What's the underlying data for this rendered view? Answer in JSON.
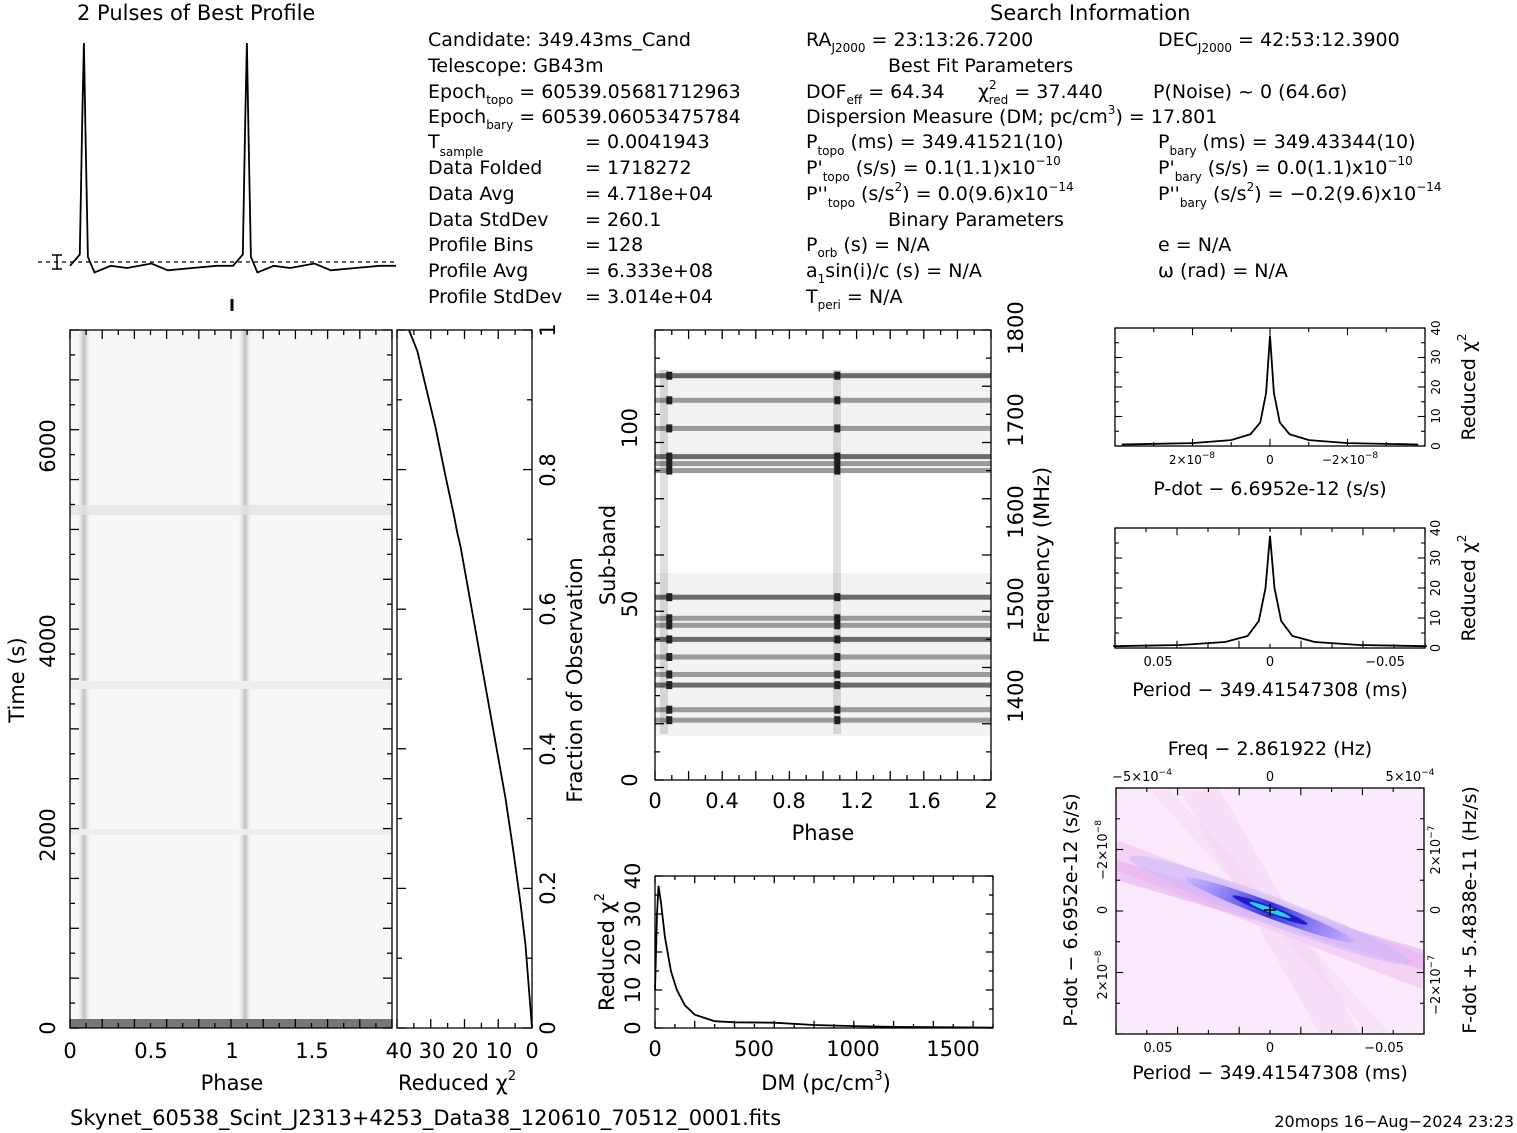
{
  "header": {
    "profile_title": "2 Pulses of Best Profile",
    "search_title": "Search Information",
    "best_fit_title": "Best Fit Parameters",
    "binary_title": "Binary Parameters"
  },
  "info": {
    "candidate": "Candidate:  349.43ms_Cand",
    "telescope": "Telescope:  GB43m",
    "epoch_topo_label": "Epoch",
    "epoch_topo_sub": "topo",
    "epoch_topo_value": " = 60539.05681712963",
    "epoch_bary_label": "Epoch",
    "epoch_bary_sub": "bary",
    "epoch_bary_value": " = 60539.06053475784",
    "t_sample_label": "T",
    "t_sample_sub": "sample",
    "t_sample_value": "=   0.0041943",
    "data_folded_label": "Data Folded",
    "data_folded_value": "=   1718272",
    "data_avg_label": "Data Avg",
    "data_avg_value": "=   4.718e+04",
    "data_stddev_label": "Data StdDev",
    "data_stddev_value": "=   260.1",
    "profile_bins_label": "Profile Bins",
    "profile_bins_value": "=   128",
    "profile_avg_label": "Profile Avg",
    "profile_avg_value": "=   6.333e+08",
    "profile_stddev_label": "Profile StdDev",
    "profile_stddev_value": "=   3.014e+04"
  },
  "search": {
    "ra_label": "RA",
    "ra_sub": "J2000",
    "ra_value": " = 23:13:26.7200",
    "dec_label": "DEC",
    "dec_sub": "J2000",
    "dec_value": " = 42:53:12.3900",
    "dof_label": "DOF",
    "dof_sub": "eff",
    "dof_value": " = 64.34",
    "chi2_label": "χ",
    "chi2_sup": "2",
    "chi2_sub": "red",
    "chi2_value": " = 37.440",
    "pnoise": "P(Noise) ~ 0   (64.6σ)",
    "dm_text": "Dispersion Measure (DM; pc/cm",
    "dm_sup": "3",
    "dm_value": ") = 17.801",
    "p_topo_label": "P",
    "p_topo_sub": "topo",
    "p_topo_value": " (ms) =  349.41521(10)",
    "p_bary_label": "P",
    "p_bary_sub": "bary",
    "p_bary_value": " (ms) =  349.43344(10)",
    "pd_topo_label": "P'",
    "pd_topo_sub": "topo",
    "pd_topo_value": " (s/s) =  0.1(1.1)x10",
    "pd_topo_exp": "−10",
    "pd_bary_label": "P'",
    "pd_bary_sub": "bary",
    "pd_bary_value": " (s/s) = 0.0(1.1)x10",
    "pd_bary_exp": "−10",
    "pdd_topo_label": "P''",
    "pdd_topo_sub": "topo",
    "pdd_topo_value": " (s/s",
    "pdd_topo_value2": ") = 0.0(9.6)x10",
    "pdd_topo_exp": "−14",
    "pdd_bary_label": "P''",
    "pdd_bary_sub": "bary",
    "pdd_bary_value": " (s/s",
    "pdd_bary_value2": ") = −0.2(9.6)x10",
    "pdd_bary_exp": "−14",
    "sq": "2",
    "porb_label": "P",
    "porb_sub": "orb",
    "porb_value": " (s) = N/A",
    "e_value": "e = N/A",
    "a1_label": "a",
    "a1_sub": "1",
    "a1_value": "sin(i)/c (s) = N/A",
    "omega_value": "ω (rad) = N/A",
    "tperi_label": "T",
    "tperi_sub": "peri",
    "tperi_value": " = N/A"
  },
  "footer": {
    "filename": "Skynet_60538_Scint_J2313+4253_Data38_120610_70512_0001.fits",
    "stamp": "20mops 16−Aug−2024 23:23"
  },
  "chart_data": [
    {
      "type": "line",
      "title": "2 Pulses of Best Profile",
      "xlim": [
        0,
        2
      ],
      "x": [
        0,
        0.06,
        0.075,
        0.085,
        0.095,
        0.11,
        0.15,
        0.25,
        0.35,
        0.5,
        0.6,
        0.75,
        0.9,
        1.0,
        1.06,
        1.075,
        1.085,
        1.095,
        1.11,
        1.15,
        1.25,
        1.35,
        1.5,
        1.6,
        1.75,
        1.9,
        2.0
      ],
      "y": [
        0.01,
        0.06,
        0.65,
        1.0,
        0.6,
        0.05,
        -0.02,
        0.01,
        0.0,
        0.02,
        -0.01,
        0.0,
        0.01,
        0.01,
        0.06,
        0.65,
        1.0,
        0.6,
        0.05,
        -0.02,
        0.01,
        0.0,
        0.02,
        -0.01,
        0.0,
        0.01,
        0.01
      ],
      "grid": false
    },
    {
      "type": "heatmap",
      "xlabel": "Phase",
      "ylabel": "Time (s)",
      "xticks": [
        "0",
        "0.5",
        "1",
        "1.5"
      ],
      "yticks": [
        "0",
        "2000",
        "4000",
        "6000"
      ],
      "xlim": [
        0,
        2
      ],
      "ylim": [
        0,
        7150
      ],
      "pulse_phase": [
        0.085,
        1.085
      ]
    },
    {
      "type": "line",
      "xlabel": "Reduced χ",
      "ylabel": "Fraction of Observation",
      "xticks": [
        "40",
        "30",
        "20",
        "10",
        "0"
      ],
      "yticks": [
        "0",
        "0.2",
        "0.4",
        "0.6",
        "0.8",
        "1"
      ],
      "xlim": [
        40,
        0
      ],
      "ylim": [
        0,
        1
      ],
      "x": [
        0,
        1,
        2,
        3.5,
        5.5,
        8,
        11,
        14,
        17,
        20,
        21.5,
        22.5,
        23.5,
        26,
        29,
        32,
        34.5,
        37
      ],
      "y": [
        0,
        0.06,
        0.12,
        0.18,
        0.25,
        0.33,
        0.41,
        0.49,
        0.57,
        0.65,
        0.69,
        0.71,
        0.735,
        0.79,
        0.86,
        0.92,
        0.97,
        1.0
      ]
    },
    {
      "type": "heatmap",
      "xlabel": "Phase",
      "ylabel": "Sub-band",
      "y2label": "Frequency (MHz)",
      "xticks": [
        "0",
        "0.4",
        "0.8",
        "1.2",
        "1.6",
        "2"
      ],
      "yticks": [
        "0",
        "50",
        "100"
      ],
      "y2ticks": [
        "1400",
        "1500",
        "1600",
        "1700",
        "1800"
      ],
      "xlim": [
        0,
        2
      ],
      "ylim": [
        0,
        128
      ],
      "bands": [
        115,
        108,
        100,
        92,
        90,
        88,
        52,
        46,
        44,
        40,
        35,
        30,
        27,
        20,
        17
      ],
      "pulse_phase": [
        0.085,
        1.085
      ]
    },
    {
      "type": "line",
      "xlabel": "DM (pc/cm",
      "xlabel_sup": "3",
      "xlabel_end": ")",
      "ylabel": "Reduced χ",
      "xticks": [
        "0",
        "500",
        "1000",
        "1500"
      ],
      "yticks": [
        "0",
        "10",
        "20",
        "30",
        "40"
      ],
      "xlim": [
        0,
        1700
      ],
      "ylim": [
        0,
        40
      ],
      "x": [
        0,
        10,
        17.8,
        30,
        50,
        80,
        110,
        150,
        200,
        300,
        400,
        600,
        800,
        1000,
        1200,
        1400,
        1700
      ],
      "y": [
        10,
        30,
        37.4,
        33,
        24,
        15,
        10,
        6,
        3.5,
        1.8,
        1.5,
        1.4,
        0.8,
        0.5,
        0.3,
        0.2,
        0.1
      ]
    },
    {
      "type": "line",
      "xlabel": "P-dot − 6.6952e-12 (s/s)",
      "ylabel": "Reduced χ",
      "xticks": [
        "2×10",
        "0",
        "−2×10"
      ],
      "xtick_exp": "−8",
      "yticks": [
        "0",
        "10",
        "20",
        "30",
        "40"
      ],
      "ylim": [
        0,
        40
      ],
      "x": [
        3.8,
        2,
        1,
        0.5,
        0.25,
        0.1,
        0,
        -0.1,
        -0.25,
        -0.5,
        -1,
        -2,
        -3.8
      ],
      "y": [
        0.5,
        1,
        2,
        4,
        8,
        18,
        37.4,
        18,
        8,
        4,
        2,
        1,
        0.5
      ]
    },
    {
      "type": "line",
      "xlabel": "Period − 349.41547308 (ms)",
      "ylabel": "Reduced χ",
      "xticks": [
        "0.05",
        "0",
        "−0.05"
      ],
      "yticks": [
        "0",
        "10",
        "20",
        "30",
        "40"
      ],
      "ylim": [
        0,
        40
      ],
      "x": [
        0.07,
        0.04,
        0.02,
        0.01,
        0.005,
        0.002,
        0,
        -0.002,
        -0.005,
        -0.01,
        -0.02,
        -0.04,
        -0.07
      ],
      "y": [
        0.6,
        1,
        2,
        4,
        9,
        20,
        37.4,
        20,
        9,
        4,
        2,
        1,
        0.6
      ]
    },
    {
      "type": "heatmap",
      "title": "Freq − 2.861922 (Hz)",
      "xlabel": "Period − 349.41547308 (ms)",
      "ylabel": "P-dot − 6.6952e-12 (s/s)",
      "y2label": "F-dot + 5.4838e-11 (Hz/s)",
      "xticks": [
        "0.05",
        "0",
        "−0.05"
      ],
      "x2ticks": [
        "−5×10",
        "0",
        "5×10"
      ],
      "x2tick_exp": "−4",
      "yticks": [
        "−2×10",
        "0",
        "2×10"
      ],
      "ytick_exp": "−8",
      "y2ticks": [
        "2×10",
        "0",
        "−2×10"
      ],
      "y2tick_exp": "−7"
    }
  ]
}
